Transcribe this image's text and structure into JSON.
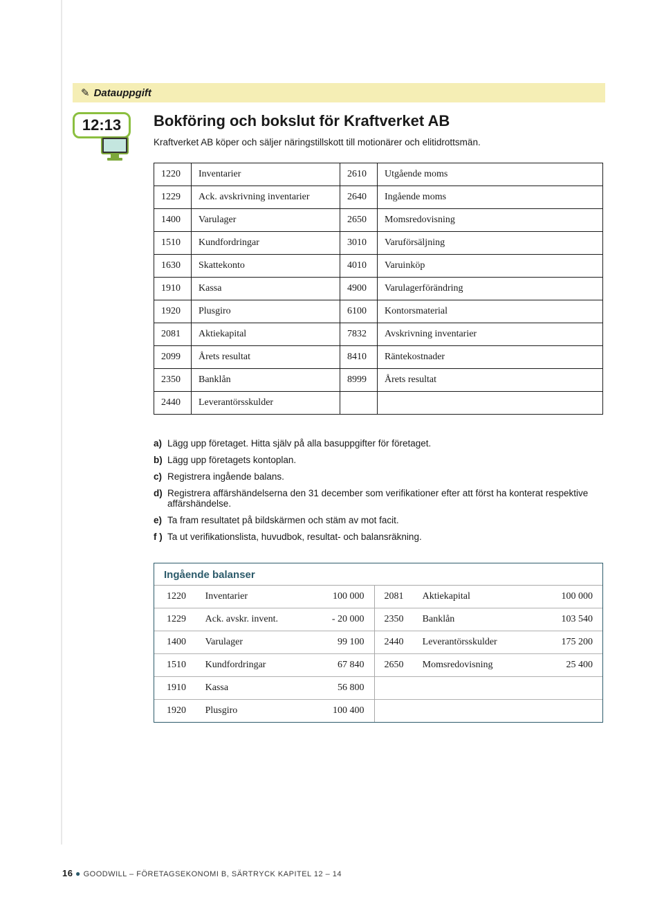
{
  "banner": {
    "icon": "✎",
    "label": "Datauppgift"
  },
  "badge": "12:13",
  "title": "Bokföring och bokslut för Kraftverket AB",
  "intro": "Kraftverket AB köper och säljer näringstillskott till motionärer och elitidrottsmän.",
  "accounts": {
    "rows": [
      {
        "c1": "1220",
        "n1": "Inventarier",
        "c2": "2610",
        "n2": "Utgående moms"
      },
      {
        "c1": "1229",
        "n1": "Ack. avskrivning inventarier",
        "c2": "2640",
        "n2": "Ingående moms"
      },
      {
        "c1": "1400",
        "n1": "Varulager",
        "c2": "2650",
        "n2": "Momsredovisning"
      },
      {
        "c1": "1510",
        "n1": "Kundfordringar",
        "c2": "3010",
        "n2": "Varuförsäljning"
      },
      {
        "c1": "1630",
        "n1": "Skattekonto",
        "c2": "4010",
        "n2": "Varuinköp"
      },
      {
        "c1": "1910",
        "n1": "Kassa",
        "c2": "4900",
        "n2": "Varulagerförändring"
      },
      {
        "c1": "1920",
        "n1": "Plusgiro",
        "c2": "6100",
        "n2": "Kontorsmaterial"
      },
      {
        "c1": "2081",
        "n1": "Aktiekapital",
        "c2": "7832",
        "n2": "Avskrivning inventarier"
      },
      {
        "c1": "2099",
        "n1": "Årets resultat",
        "c2": "8410",
        "n2": "Räntekostnader"
      },
      {
        "c1": "2350",
        "n1": "Banklån",
        "c2": "8999",
        "n2": "Årets resultat"
      },
      {
        "c1": "2440",
        "n1": "Leverantörsskulder",
        "c2": "",
        "n2": ""
      }
    ]
  },
  "tasks": [
    {
      "letter": "a)",
      "text": "Lägg upp företaget. Hitta själv på alla basuppgifter för företaget."
    },
    {
      "letter": "b)",
      "text": "Lägg upp företagets kontoplan."
    },
    {
      "letter": "c)",
      "text": "Registrera ingående balans."
    },
    {
      "letter": "d)",
      "text": "Registrera affärshändelserna den 31 december som verifikationer efter att först ha konterat respektive affärshändelse."
    },
    {
      "letter": "e)",
      "text": "Ta fram resultatet på bildskärmen och stäm av mot facit."
    },
    {
      "letter": "f )",
      "text": "Ta ut verifikationslista, huvudbok, resultat- och balansräkning."
    }
  ],
  "balances": {
    "header": "Ingående balanser",
    "rows": [
      {
        "c1": "1220",
        "n1": "Inventarier",
        "v1": "100 000",
        "c2": "2081",
        "n2": "Aktiekapital",
        "v2": "100 000"
      },
      {
        "c1": "1229",
        "n1": "Ack. avskr. invent.",
        "v1": "- 20 000",
        "c2": "2350",
        "n2": "Banklån",
        "v2": "103 540"
      },
      {
        "c1": "1400",
        "n1": "Varulager",
        "v1": "99 100",
        "c2": "2440",
        "n2": "Leverantörsskulder",
        "v2": "175 200"
      },
      {
        "c1": "1510",
        "n1": "Kundfordringar",
        "v1": "67 840",
        "c2": "2650",
        "n2": "Momsredovisning",
        "v2": "25 400"
      },
      {
        "c1": "1910",
        "n1": "Kassa",
        "v1": "56 800",
        "c2": "",
        "n2": "",
        "v2": ""
      },
      {
        "c1": "1920",
        "n1": "Plusgiro",
        "v1": "100 400",
        "c2": "",
        "n2": "",
        "v2": ""
      }
    ]
  },
  "footer": {
    "page": "16",
    "text": "GOODWILL – FÖRETAGSEKONOMI B, SÄRTRYCK KAPITEL 12 – 14"
  },
  "colors": {
    "banner_bg": "#f5eeb5",
    "accent": "#2b5a6a",
    "badge_border": "#8bbf3f"
  }
}
